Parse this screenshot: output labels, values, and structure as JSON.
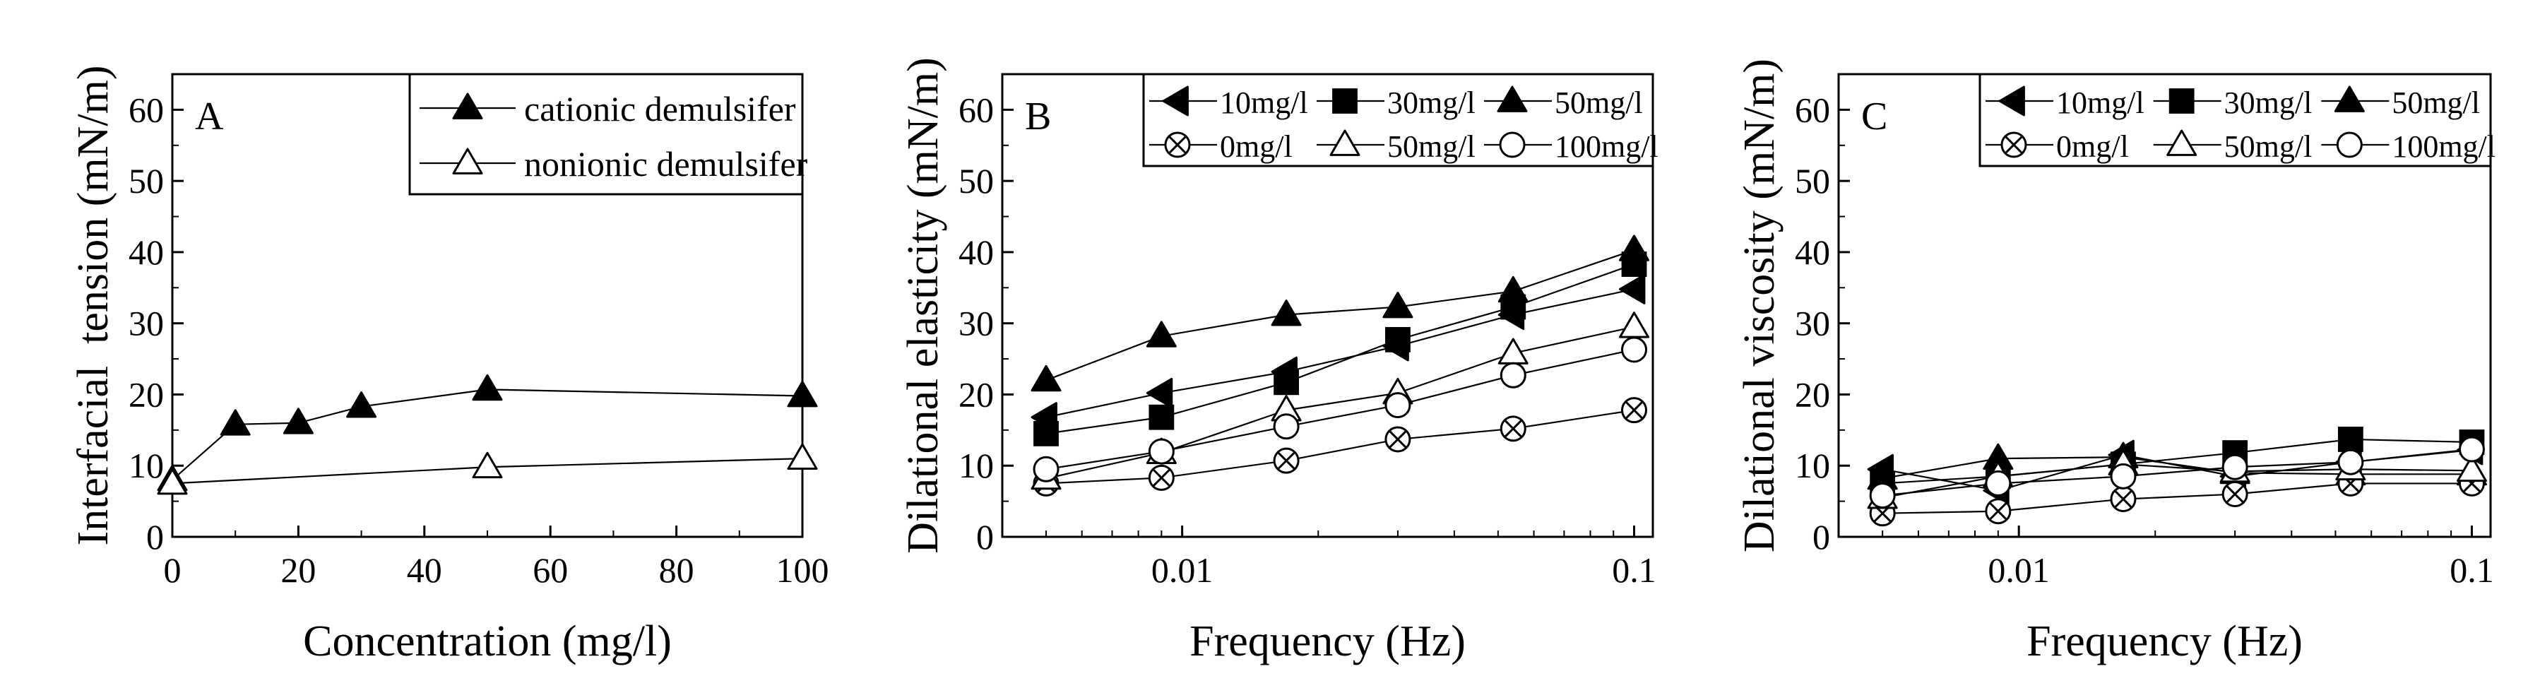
{
  "chart_data": [
    {
      "panel": "A",
      "type": "line",
      "xscale": "linear",
      "xlabel": "Concentration (mg/l)",
      "ylabel": "Interfacial  tension (mN/m)",
      "xlim": [
        0,
        100
      ],
      "ylim": [
        0,
        65
      ],
      "xticks": [
        0,
        20,
        40,
        60,
        80,
        100
      ],
      "xtick_labels": [
        "0",
        "20",
        "40",
        "60",
        "80",
        "100"
      ],
      "yticks": [
        0,
        10,
        20,
        30,
        40,
        50,
        60
      ],
      "ytick_labels": [
        "0",
        "10",
        "20",
        "30",
        "40",
        "50",
        "60"
      ],
      "legend_position": "top-right",
      "legend_columns": 1,
      "series": [
        {
          "name": "cationic demulsifer",
          "marker": "triangle-up-filled",
          "x": [
            0,
            10,
            20,
            30,
            50,
            100
          ],
          "y": [
            8,
            15.8,
            16,
            18.3,
            20.7,
            19.8
          ]
        },
        {
          "name": "nonionic demulsifer",
          "marker": "triangle-up-open",
          "x": [
            0,
            50,
            100
          ],
          "y": [
            7.5,
            9.8,
            11
          ]
        }
      ]
    },
    {
      "panel": "B",
      "type": "line",
      "xscale": "log",
      "xlabel": "Frequency (Hz)",
      "ylabel": "Dilational elasticity (mN/m)",
      "xlim": [
        0.004,
        0.11
      ],
      "ylim": [
        0,
        65
      ],
      "xticks": [
        0.01,
        0.1
      ],
      "xtick_labels": [
        "0.01",
        "0.1"
      ],
      "yticks": [
        0,
        10,
        20,
        30,
        40,
        50,
        60
      ],
      "ytick_labels": [
        "0",
        "10",
        "20",
        "30",
        "40",
        "50",
        "60"
      ],
      "legend_position": "top",
      "legend_columns": 3,
      "x": [
        0.005,
        0.009,
        0.017,
        0.03,
        0.054,
        0.1
      ],
      "series": [
        {
          "name": "10mg/l",
          "marker": "triangle-left-filled",
          "y": [
            16.8,
            20.2,
            23.2,
            26.8,
            31.2,
            34.8
          ]
        },
        {
          "name": "30mg/l",
          "marker": "square-filled",
          "y": [
            14.5,
            16.8,
            21.7,
            27.7,
            32.3,
            38.3
          ]
        },
        {
          "name": "50mg/l",
          "marker": "triangle-up-filled",
          "y": [
            22,
            28.2,
            31.2,
            32.3,
            34.5,
            40.3
          ]
        },
        {
          "name": "0mg/l",
          "marker": "circle-cross",
          "y": [
            7.5,
            8.3,
            10.7,
            13.7,
            15.2,
            17.8
          ]
        },
        {
          "name": "50mg/l",
          "marker": "triangle-up-open",
          "y": [
            8.2,
            11.8,
            17.8,
            20.2,
            25.8,
            29.5
          ]
        },
        {
          "name": "100mg/l",
          "marker": "circle-open",
          "y": [
            9.5,
            12,
            15.5,
            18.5,
            22.7,
            26.3
          ]
        }
      ]
    },
    {
      "panel": "C",
      "type": "line",
      "xscale": "log",
      "xlabel": "Frequency (Hz)",
      "ylabel": "Dilational viscosity (mN/m)",
      "xlim": [
        0.004,
        0.11
      ],
      "ylim": [
        0,
        65
      ],
      "xticks": [
        0.01,
        0.1
      ],
      "xtick_labels": [
        "0.01",
        "0.1"
      ],
      "yticks": [
        0,
        10,
        20,
        30,
        40,
        50,
        60
      ],
      "ytick_labels": [
        "0",
        "10",
        "20",
        "30",
        "40",
        "50",
        "60"
      ],
      "legend_position": "top",
      "legend_columns": 3,
      "x": [
        0.005,
        0.009,
        0.017,
        0.03,
        0.054,
        0.1
      ],
      "series": [
        {
          "name": "10mg/l",
          "marker": "triangle-left-filled",
          "y": [
            9.5,
            6.5,
            11.5,
            8.5,
            10.5,
            12.2
          ]
        },
        {
          "name": "30mg/l",
          "marker": "square-filled",
          "y": [
            7.5,
            8.5,
            10.2,
            11.8,
            13.7,
            13.3
          ]
        },
        {
          "name": "50mg/l",
          "marker": "triangle-up-filled",
          "y": [
            8.2,
            11,
            11.2,
            9,
            8.8,
            8.8
          ]
        },
        {
          "name": "0mg/l",
          "marker": "circle-cross",
          "y": [
            3.3,
            3.6,
            5.3,
            6,
            7.5,
            7.5
          ]
        },
        {
          "name": "50mg/l",
          "marker": "triangle-up-open",
          "y": [
            5.5,
            8.5,
            10.2,
            9.2,
            9.5,
            9.3
          ]
        },
        {
          "name": "100mg/l",
          "marker": "circle-open",
          "y": [
            5.8,
            7.5,
            8.5,
            9.8,
            10.5,
            12.3
          ]
        }
      ]
    }
  ]
}
